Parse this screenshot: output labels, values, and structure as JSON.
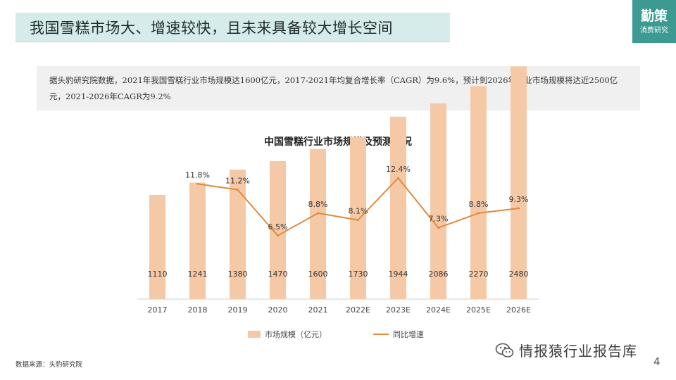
{
  "header": {
    "title": "我国雪糕市场大、增速较快，且未来具备较大增长空间",
    "brand_name": "勤策",
    "brand_sub": "消费研究"
  },
  "summary": {
    "text": "据头豹研究院数据，2021年我国雪糕行业市场规模达1600亿元，2017-2021年均复合增长率（CAGR）为9.6%，预计到2026年行业市场规模将达近2500亿元，2021-2026年CAGR为9.2%"
  },
  "colors": {
    "bar": "#f6c9a6",
    "line": "#e08a3c",
    "banner_bg": "#d6ecea",
    "brand_bg": "#3c9a93"
  },
  "chart_data": {
    "type": "bar",
    "title": "中国雪糕行业市场规模及预测情况",
    "categories": [
      "2017",
      "2018",
      "2019",
      "2020",
      "2021",
      "2022E",
      "2023E",
      "2024E",
      "2025E",
      "2026E"
    ],
    "bar_labels": [
      "1110",
      "1241",
      "1380",
      "1470",
      "1600",
      "1730",
      "1944",
      "2086",
      "2270",
      "2480"
    ],
    "line_labels": [
      "",
      "11.8%",
      "11.2%",
      "6.5%",
      "8.8%",
      "8.1%",
      "12.4%",
      "7.3%",
      "8.8%",
      "9.3%"
    ],
    "series": [
      {
        "name": "市场规模（亿元）",
        "type": "bar",
        "values": [
          1110,
          1241,
          1380,
          1470,
          1600,
          1730,
          1944,
          2086,
          2270,
          2480
        ]
      },
      {
        "name": "同比增速",
        "type": "line",
        "values": [
          null,
          11.8,
          11.2,
          6.5,
          8.8,
          8.1,
          12.4,
          7.3,
          8.8,
          9.3
        ]
      }
    ],
    "ylim_bar": [
      0,
      2700
    ],
    "ylim_line": [
      0,
      16
    ],
    "grid": false,
    "legend_position": "bottom"
  },
  "footer": {
    "source": "数据来源：头豹研究院",
    "watermark": "情报猿行业报告库",
    "page_number": "4"
  }
}
